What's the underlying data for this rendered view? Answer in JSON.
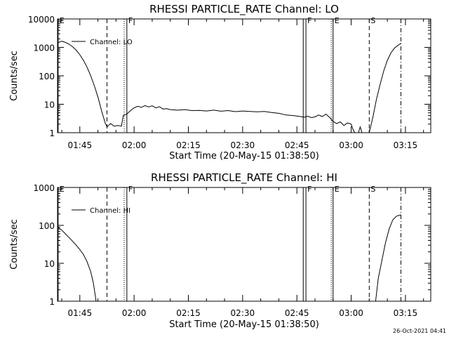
{
  "footer": {
    "timestamp": "26-Oct-2021 04:41"
  },
  "chart_data": [
    {
      "type": "line",
      "title": "RHESSI PARTICLE_RATE Channel: LO",
      "xlabel": "Start Time (20-May-15 01:38:50)",
      "ylabel": "Counts/sec",
      "legend": {
        "entry": "Channel: LO",
        "placement": "top-left"
      },
      "yscale": "log",
      "ylim": [
        1,
        10000
      ],
      "yticks": [
        {
          "value": 1,
          "label": "1"
        },
        {
          "value": 10,
          "label": "10"
        },
        {
          "value": 100,
          "label": "100"
        },
        {
          "value": 1000,
          "label": "1000"
        },
        {
          "value": 10000,
          "label": "10000"
        }
      ],
      "xlim": [
        "01:38:50",
        "03:22:00"
      ],
      "xticks": [
        "01:45",
        "02:00",
        "02:15",
        "02:30",
        "02:45",
        "03:00",
        "03:15"
      ],
      "flags": [
        {
          "label": "E",
          "time": "01:39:00",
          "style": "solid"
        },
        {
          "label": "",
          "time": "01:52:30",
          "style": "dashed"
        },
        {
          "label": "",
          "time": "01:57:15",
          "style": "dotted"
        },
        {
          "label": "F",
          "time": "01:58:00",
          "style": "solid"
        },
        {
          "label": "",
          "time": "02:46:45",
          "style": "solid"
        },
        {
          "label": "F",
          "time": "02:47:30",
          "style": "solid"
        },
        {
          "label": "",
          "time": "02:54:30",
          "style": "dotted"
        },
        {
          "label": "E",
          "time": "02:55:00",
          "style": "solid"
        },
        {
          "label": "S",
          "time": "03:05:00",
          "style": "dashed"
        },
        {
          "label": "",
          "time": "03:13:45",
          "style": "dashdot"
        }
      ],
      "series": [
        {
          "name": "Channel: LO",
          "points": [
            [
              "01:38:50",
              1450
            ],
            [
              "01:40:00",
              1650
            ],
            [
              "01:41:00",
              1500
            ],
            [
              "01:42:00",
              1300
            ],
            [
              "01:43:00",
              1050
            ],
            [
              "01:44:00",
              800
            ],
            [
              "01:45:00",
              550
            ],
            [
              "01:46:00",
              350
            ],
            [
              "01:47:00",
              200
            ],
            [
              "01:48:00",
              100
            ],
            [
              "01:49:00",
              45
            ],
            [
              "01:50:00",
              18
            ],
            [
              "01:51:00",
              6
            ],
            [
              "01:52:00",
              2.2
            ],
            [
              "01:52:30",
              1.6
            ],
            [
              "01:53:30",
              2.1
            ],
            [
              "01:54:30",
              1.7
            ],
            [
              "01:55:30",
              1.8
            ],
            [
              "01:56:30",
              1.7
            ],
            [
              "01:57:00",
              4.0
            ],
            [
              "01:58:00",
              4.5
            ],
            [
              "01:59:00",
              6.0
            ],
            [
              "02:00:00",
              7.5
            ],
            [
              "02:01:00",
              8.5
            ],
            [
              "02:02:00",
              7.8
            ],
            [
              "02:03:00",
              9.0
            ],
            [
              "02:04:00",
              8.0
            ],
            [
              "02:05:00",
              8.8
            ],
            [
              "02:06:00",
              7.5
            ],
            [
              "02:07:00",
              8.2
            ],
            [
              "02:08:00",
              6.8
            ],
            [
              "02:09:00",
              7.0
            ],
            [
              "02:10:00",
              6.5
            ],
            [
              "02:12:00",
              6.2
            ],
            [
              "02:14:00",
              6.5
            ],
            [
              "02:16:00",
              6.0
            ],
            [
              "02:18:00",
              6.1
            ],
            [
              "02:20:00",
              5.8
            ],
            [
              "02:22:00",
              6.2
            ],
            [
              "02:24:00",
              5.7
            ],
            [
              "02:26:00",
              6.0
            ],
            [
              "02:28:00",
              5.5
            ],
            [
              "02:30:00",
              5.8
            ],
            [
              "02:32:00",
              5.6
            ],
            [
              "02:34:00",
              5.4
            ],
            [
              "02:36:00",
              5.6
            ],
            [
              "02:38:00",
              5.1
            ],
            [
              "02:40:00",
              4.8
            ],
            [
              "02:42:00",
              4.2
            ],
            [
              "02:44:00",
              4.0
            ],
            [
              "02:46:00",
              3.7
            ],
            [
              "02:47:00",
              3.5
            ],
            [
              "02:48:00",
              3.8
            ],
            [
              "02:49:00",
              3.4
            ],
            [
              "02:50:00",
              3.6
            ],
            [
              "02:51:00",
              4.2
            ],
            [
              "02:52:00",
              3.7
            ],
            [
              "02:53:00",
              4.5
            ],
            [
              "02:54:00",
              3.5
            ],
            [
              "02:55:00",
              2.5
            ],
            [
              "02:56:00",
              2.1
            ],
            [
              "02:57:00",
              2.4
            ],
            [
              "02:58:00",
              1.8
            ],
            [
              "02:59:00",
              2.2
            ],
            [
              "03:00:00",
              2.0
            ],
            [
              "03:00:30",
              1.3
            ],
            [
              "03:01:00",
              1.0
            ],
            [
              "03:02:00",
              1.0
            ],
            [
              "03:02:30",
              1.6
            ],
            [
              "03:03:00",
              1.0
            ],
            [
              "03:04:00",
              1.0
            ],
            [
              "03:05:00",
              1.0
            ],
            [
              "03:06:00",
              3.5
            ],
            [
              "03:07:00",
              15
            ],
            [
              "03:08:00",
              50
            ],
            [
              "03:09:00",
              150
            ],
            [
              "03:10:00",
              350
            ],
            [
              "03:11:00",
              650
            ],
            [
              "03:12:00",
              950
            ],
            [
              "03:13:00",
              1200
            ],
            [
              "03:13:45",
              1400
            ]
          ]
        }
      ]
    },
    {
      "type": "line",
      "title": "RHESSI PARTICLE_RATE Channel: HI",
      "xlabel": "Start Time (20-May-15 01:38:50)",
      "ylabel": "Counts/sec",
      "legend": {
        "entry": "Channel: HI",
        "placement": "top-left"
      },
      "yscale": "log",
      "ylim": [
        1,
        1000
      ],
      "yticks": [
        {
          "value": 1,
          "label": "1"
        },
        {
          "value": 10,
          "label": "10"
        },
        {
          "value": 100,
          "label": "100"
        },
        {
          "value": 1000,
          "label": "1000"
        }
      ],
      "xlim": [
        "01:38:50",
        "03:22:00"
      ],
      "xticks": [
        "01:45",
        "02:00",
        "02:15",
        "02:30",
        "02:45",
        "03:00",
        "03:15"
      ],
      "flags": [
        {
          "label": "E",
          "time": "01:39:00",
          "style": "solid"
        },
        {
          "label": "",
          "time": "01:52:30",
          "style": "dashed"
        },
        {
          "label": "",
          "time": "01:57:15",
          "style": "dotted"
        },
        {
          "label": "F",
          "time": "01:58:00",
          "style": "solid"
        },
        {
          "label": "",
          "time": "02:46:45",
          "style": "solid"
        },
        {
          "label": "F",
          "time": "02:47:30",
          "style": "solid"
        },
        {
          "label": "",
          "time": "02:54:30",
          "style": "dotted"
        },
        {
          "label": "E",
          "time": "02:55:00",
          "style": "solid"
        },
        {
          "label": "S",
          "time": "03:05:00",
          "style": "dashed"
        },
        {
          "label": "",
          "time": "03:13:45",
          "style": "dashdot"
        }
      ],
      "series": [
        {
          "name": "Channel: HI",
          "points": [
            [
              "01:38:50",
              90
            ],
            [
              "01:40:00",
              75
            ],
            [
              "01:41:00",
              60
            ],
            [
              "01:42:00",
              48
            ],
            [
              "01:43:00",
              38
            ],
            [
              "01:44:00",
              30
            ],
            [
              "01:45:00",
              23
            ],
            [
              "01:46:00",
              17
            ],
            [
              "01:47:00",
              11
            ],
            [
              "01:48:00",
              6
            ],
            [
              "01:48:45",
              3
            ],
            [
              "01:49:30",
              1.0
            ]
          ]
        },
        {
          "name": "Channel: HI",
          "points": [
            [
              "03:06:45",
              1.0
            ],
            [
              "03:07:30",
              4
            ],
            [
              "03:08:30",
              12
            ],
            [
              "03:09:30",
              35
            ],
            [
              "03:10:30",
              80
            ],
            [
              "03:11:30",
              140
            ],
            [
              "03:12:30",
              175
            ],
            [
              "03:13:45",
              190
            ]
          ]
        }
      ]
    }
  ]
}
